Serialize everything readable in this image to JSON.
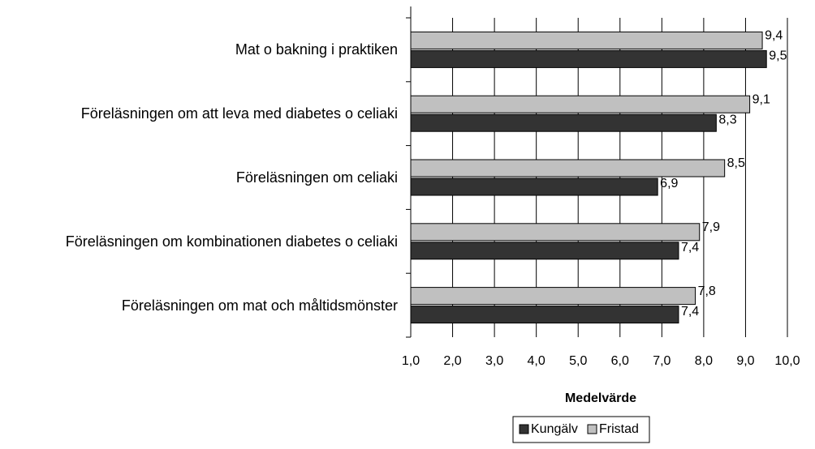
{
  "chart_data": {
    "type": "hbar",
    "categories": [
      "Mat o bakning i praktiken",
      "Föreläsningen om att leva med diabetes o celiaki",
      "Föreläsningen om celiaki",
      "Föreläsningen om kombinationen diabetes o celiaki",
      "Föreläsningen om mat och måltidsmönster"
    ],
    "series": [
      {
        "name": "Kungälv",
        "color": "#333333",
        "values": [
          9.5,
          8.3,
          6.9,
          7.4,
          7.4
        ],
        "value_labels": [
          "9,5",
          "8,3",
          "6,9",
          "7,4",
          "7,4"
        ]
      },
      {
        "name": "Fristad",
        "color": "#c0c0c0",
        "values": [
          9.4,
          9.1,
          8.5,
          7.9,
          7.8
        ],
        "value_labels": [
          "9,4",
          "9,1",
          "8,5",
          "7,9",
          "7,8"
        ]
      }
    ],
    "xlabel": "Medelvärde",
    "xlim": [
      1,
      10
    ],
    "xticks": [
      {
        "value": 1,
        "label": "1,0"
      },
      {
        "value": 2,
        "label": "2,0"
      },
      {
        "value": 3,
        "label": "3,0"
      },
      {
        "value": 4,
        "label": "4,0"
      },
      {
        "value": 5,
        "label": "5,0"
      },
      {
        "value": 6,
        "label": "6,0"
      },
      {
        "value": 7,
        "label": "7,0"
      },
      {
        "value": 8,
        "label": "8,0"
      },
      {
        "value": 9,
        "label": "9,0"
      },
      {
        "value": 10,
        "label": "10,0"
      }
    ],
    "grid": true
  }
}
